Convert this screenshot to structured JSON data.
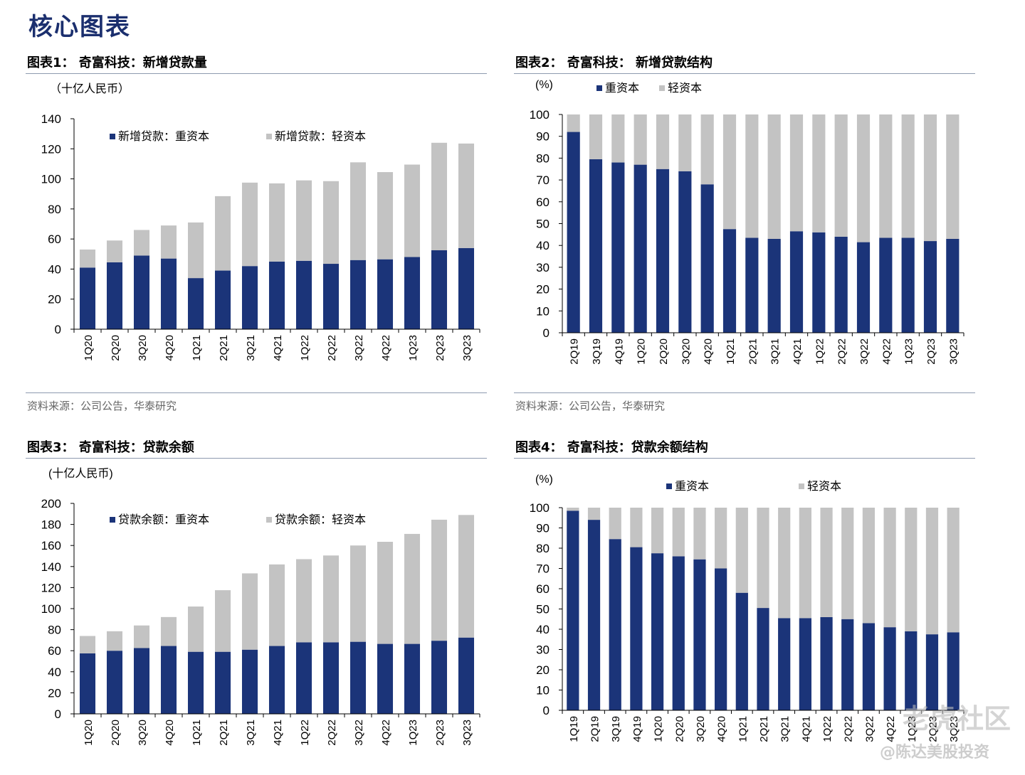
{
  "page_title": "核心图表",
  "colors": {
    "heavy": "#1b3479",
    "light": "#c3c3c3",
    "axis": "#000000"
  },
  "source_text": "资料来源：公司公告，华泰研究",
  "watermark": {
    "brand": "老虎社区",
    "handle": "@陈达美股投资"
  },
  "chart_data": [
    {
      "type": "bar",
      "stacked": true,
      "title": "图表1：  奇富科技：新增贷款量",
      "unit_label": "（十亿人民币）",
      "categories": [
        "1Q20",
        "2Q20",
        "3Q20",
        "4Q20",
        "1Q21",
        "2Q21",
        "3Q21",
        "4Q21",
        "1Q22",
        "2Q22",
        "3Q22",
        "4Q22",
        "1Q23",
        "2Q23",
        "3Q23"
      ],
      "series": [
        {
          "name": "新增贷款：重资本",
          "values": [
            41,
            44.5,
            49,
            47,
            34,
            39,
            42,
            45,
            45.5,
            43.5,
            46,
            46.5,
            48,
            52.5,
            54
          ]
        },
        {
          "name": "新增贷款：轻资本",
          "values": [
            12,
            14.5,
            17,
            22,
            37,
            49.5,
            55.5,
            52,
            53.5,
            55,
            65,
            58,
            61.5,
            71.5,
            69.5
          ]
        }
      ],
      "ylim": [
        0,
        140
      ],
      "yticks": [
        0,
        20,
        40,
        60,
        80,
        100,
        120,
        140
      ],
      "legend_position": "top"
    },
    {
      "type": "bar",
      "stacked": true,
      "title": "图表2：  奇富科技：  新增贷款结构",
      "unit_label": "(%)",
      "categories": [
        "2Q19",
        "3Q19",
        "4Q19",
        "1Q20",
        "2Q20",
        "3Q20",
        "4Q20",
        "1Q21",
        "2Q21",
        "3Q21",
        "4Q21",
        "1Q22",
        "2Q22",
        "3Q22",
        "4Q22",
        "1Q23",
        "2Q23",
        "3Q23"
      ],
      "series": [
        {
          "name": "重资本",
          "values": [
            92,
            79.5,
            78,
            77,
            75,
            74,
            68,
            47.5,
            43.5,
            43,
            46.5,
            46,
            44,
            41.5,
            43.5,
            43.5,
            42,
            43
          ]
        },
        {
          "name": "轻资本",
          "values": [
            8,
            20.5,
            22,
            23,
            25,
            26,
            32,
            52.5,
            56.5,
            57,
            53.5,
            54,
            56,
            58.5,
            56.5,
            56.5,
            58,
            57
          ]
        }
      ],
      "ylim": [
        0,
        100
      ],
      "yticks": [
        0,
        10,
        20,
        30,
        40,
        50,
        60,
        70,
        80,
        90,
        100
      ],
      "legend_position": "top"
    },
    {
      "type": "bar",
      "stacked": true,
      "title": "图表3：  奇富科技：贷款余额",
      "unit_label": "(十亿人民币)",
      "categories": [
        "1Q20",
        "2Q20",
        "3Q20",
        "4Q20",
        "1Q21",
        "2Q21",
        "3Q21",
        "4Q21",
        "1Q22",
        "2Q22",
        "3Q22",
        "4Q22",
        "1Q23",
        "2Q23",
        "3Q23"
      ],
      "series": [
        {
          "name": "贷款余额：重资本",
          "values": [
            57.5,
            60,
            62.5,
            64.5,
            59,
            59,
            61,
            64.5,
            68,
            68,
            68.5,
            66.5,
            66.5,
            69.5,
            72.5
          ]
        },
        {
          "name": "贷款余额：轻资本",
          "values": [
            16.5,
            18.5,
            21.5,
            27.5,
            43,
            58.5,
            72.5,
            77.5,
            79,
            82.5,
            91.5,
            97,
            104.5,
            115,
            116.5
          ]
        }
      ],
      "ylim": [
        0,
        200
      ],
      "yticks": [
        0,
        20,
        40,
        60,
        80,
        100,
        120,
        140,
        160,
        180,
        200
      ],
      "legend_position": "top"
    },
    {
      "type": "bar",
      "stacked": true,
      "title": "图表4：  奇富科技：贷款余额结构",
      "unit_label": "(%)",
      "categories": [
        "1Q19",
        "2Q19",
        "3Q19",
        "4Q19",
        "1Q20",
        "2Q20",
        "3Q20",
        "4Q20",
        "1Q21",
        "2Q21",
        "3Q21",
        "4Q21",
        "1Q22",
        "2Q22",
        "3Q22",
        "4Q22",
        "1Q23",
        "2Q23",
        "3Q23"
      ],
      "series": [
        {
          "name": "重资本",
          "values": [
            98.5,
            94,
            84.5,
            80.5,
            77.5,
            76,
            74.5,
            70,
            58,
            50.5,
            45.5,
            45.5,
            46,
            45,
            43,
            41,
            39,
            37.5,
            38.5
          ]
        },
        {
          "name": "轻资本",
          "values": [
            1.5,
            6,
            15.5,
            19.5,
            22.5,
            24,
            25.5,
            30,
            42,
            49.5,
            54.5,
            54.5,
            54,
            55,
            57,
            59,
            61,
            62.5,
            61.5
          ]
        }
      ],
      "ylim": [
        0,
        100
      ],
      "yticks": [
        0,
        10,
        20,
        30,
        40,
        50,
        60,
        70,
        80,
        90,
        100
      ],
      "legend_position": "top"
    }
  ]
}
